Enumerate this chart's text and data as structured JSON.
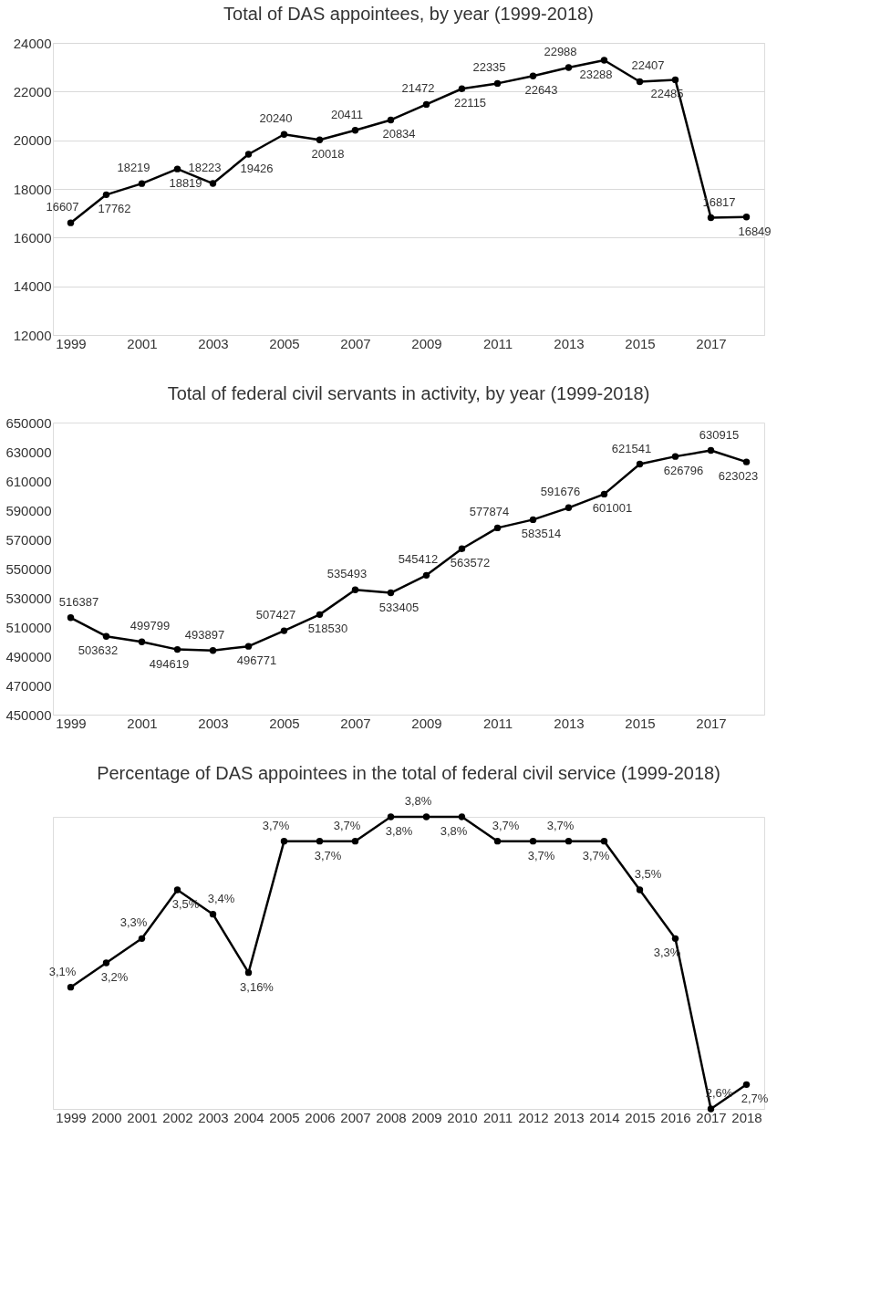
{
  "chart_data": [
    {
      "type": "line",
      "title": "Total of DAS appointees, by year (1999-2018)",
      "categories": [
        "1999",
        null,
        "2001",
        null,
        "2003",
        null,
        "2005",
        null,
        "2007",
        null,
        "2009",
        null,
        "2011",
        null,
        "2013",
        null,
        "2015",
        null,
        "2017",
        null
      ],
      "series": [
        {
          "color": "#000000",
          "values": [
            16607,
            17762,
            18219,
            18819,
            18223,
            19426,
            20240,
            20018,
            20411,
            20834,
            21472,
            22115,
            22335,
            22643,
            22988,
            23288,
            22407,
            22485,
            16817,
            16849
          ]
        }
      ],
      "ylim": [
        12000,
        24000
      ],
      "yticks": [
        12000,
        14000,
        16000,
        18000,
        20000,
        22000,
        24000
      ],
      "grid": "y",
      "marker": "circle",
      "data_labels": true
    },
    {
      "type": "line",
      "title": "Total of federal civil servants in activity, by year (1999-2018)",
      "categories": [
        "1999",
        null,
        "2001",
        null,
        "2003",
        null,
        "2005",
        null,
        "2007",
        null,
        "2009",
        null,
        "2011",
        null,
        "2013",
        null,
        "2015",
        null,
        "2017",
        null
      ],
      "series": [
        {
          "color": "#000000",
          "values": [
            516387,
            503632,
            499799,
            494619,
            493897,
            496771,
            507427,
            518530,
            535493,
            533405,
            545412,
            563572,
            577874,
            583514,
            591676,
            601001,
            621541,
            626796,
            630915,
            623023
          ]
        }
      ],
      "ylim": [
        450000,
        650000
      ],
      "yticks": [
        450000,
        470000,
        490000,
        510000,
        530000,
        550000,
        570000,
        590000,
        610000,
        630000,
        650000
      ],
      "marker": "circle",
      "data_labels": true
    },
    {
      "type": "line",
      "title": "Percentage of DAS appointees in the total of federal civil service (1999-2018)",
      "categories": [
        "1999",
        "2000",
        "2001",
        "2002",
        "2003",
        "2004",
        "2005",
        "2006",
        "2007",
        "2008",
        "2009",
        "2010",
        "2011",
        "2012",
        "2013",
        "2014",
        "2015",
        "2016",
        "2017",
        "2018"
      ],
      "series": [
        {
          "color": "#000000",
          "values": [
            3.1,
            3.2,
            3.3,
            3.5,
            3.4,
            3.16,
            3.7,
            3.7,
            3.7,
            3.8,
            3.8,
            3.8,
            3.7,
            3.7,
            3.7,
            3.7,
            3.5,
            3.3,
            2.6,
            2.7
          ],
          "value_labels": [
            "3,1%",
            "3,2%",
            "3,3%",
            "3,5%",
            "3,4%",
            "3,16%",
            "3,7%",
            "3,7%",
            "3,7%",
            "3,8%",
            "3,8%",
            "3,8%",
            "3,7%",
            "3,7%",
            "3,7%",
            "3,7%",
            "3,5%",
            "3,3%",
            "2,6%",
            "2,7%"
          ]
        }
      ],
      "tick_labels": "x",
      "marker": "circle"
    }
  ]
}
